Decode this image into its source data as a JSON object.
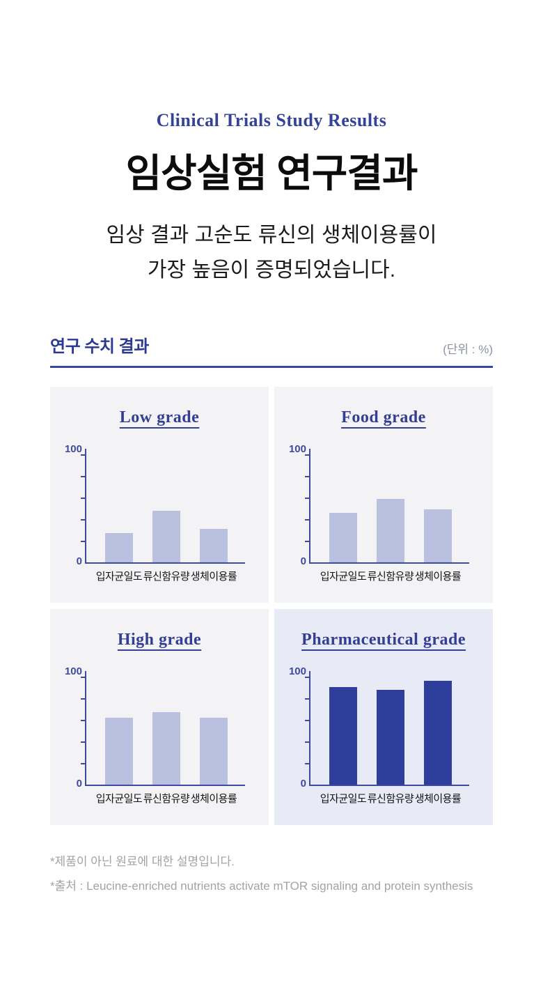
{
  "header": {
    "eyebrow": "Clinical Trials Study Results",
    "title": "임상실험 연구결과",
    "subtitle_line1": "임상 결과 고순도 류신의 생체이용률이",
    "subtitle_line2": "가장 높음이 증명되었습니다."
  },
  "section": {
    "title": "연구 수치 결과",
    "unit": "(단위 : %)"
  },
  "footnotes": [
    "*제품이 아닌 원료에 대한 설명입니다.",
    "*출처 : Leucine-enriched nutrients activate mTOR signaling and protein synthesis"
  ],
  "colors": {
    "accent_navy": "#333F93",
    "axis_navy": "#3E4A9E",
    "bar_light": "#BAC0DF",
    "bar_dark": "#2E3E9B",
    "panel_bg": "#F3F3F5",
    "panel_bg_highlight": "#E8EAF6",
    "divider": "#3A48A5",
    "unit_gray": "#8C91A5",
    "footnote_gray": "#A3A3A3"
  },
  "chart_data": [
    {
      "type": "bar",
      "title": "Low grade",
      "categories": [
        "입자균일도",
        "류신함유량",
        "생체이용률"
      ],
      "values": [
        27,
        48,
        31
      ],
      "ylim": [
        0,
        100
      ],
      "ytick_labels": [
        "0",
        "100"
      ],
      "minor_ticks": [
        20,
        40,
        60,
        80
      ],
      "unit": "%",
      "grid": false,
      "highlight": false
    },
    {
      "type": "bar",
      "title": "Food grade",
      "categories": [
        "입자균일도",
        "류신함유량",
        "생체이용률"
      ],
      "values": [
        46,
        59,
        49
      ],
      "ylim": [
        0,
        100
      ],
      "ytick_labels": [
        "0",
        "100"
      ],
      "minor_ticks": [
        20,
        40,
        60,
        80
      ],
      "unit": "%",
      "grid": false,
      "highlight": false
    },
    {
      "type": "bar",
      "title": "High grade",
      "categories": [
        "입자균일도",
        "류신함유량",
        "생체이용률"
      ],
      "values": [
        62,
        67,
        62
      ],
      "ylim": [
        0,
        100
      ],
      "ytick_labels": [
        "0",
        "100"
      ],
      "minor_ticks": [
        20,
        40,
        60,
        80
      ],
      "unit": "%",
      "grid": false,
      "highlight": false
    },
    {
      "type": "bar",
      "title": "Pharmaceutical grade",
      "categories": [
        "입자균일도",
        "류신함유량",
        "생체이용률"
      ],
      "values": [
        90,
        88,
        96
      ],
      "ylim": [
        0,
        100
      ],
      "ytick_labels": [
        "0",
        "100"
      ],
      "minor_ticks": [
        20,
        40,
        60,
        80
      ],
      "unit": "%",
      "grid": false,
      "highlight": true
    }
  ]
}
